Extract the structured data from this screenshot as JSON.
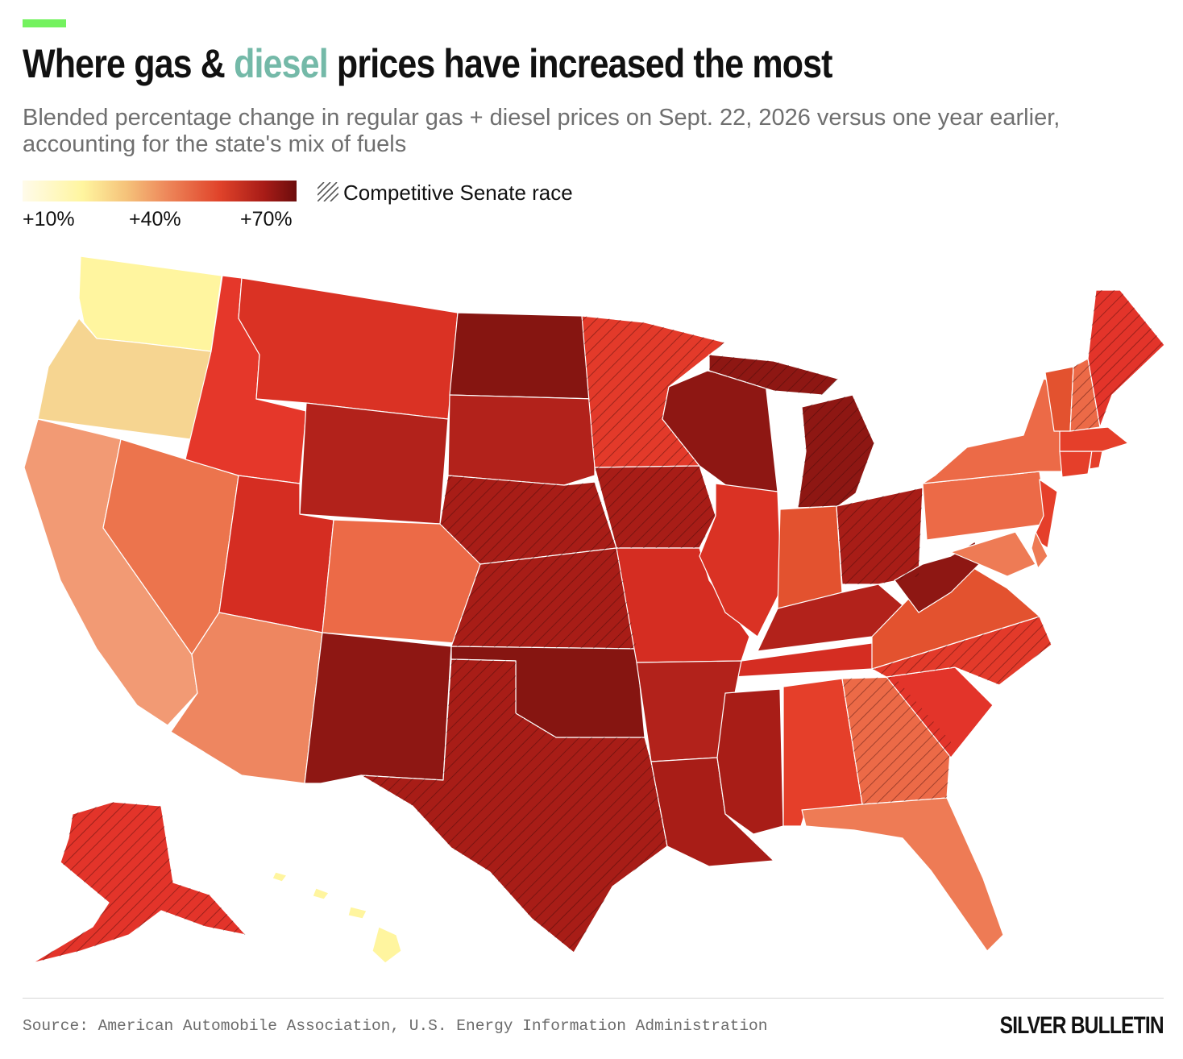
{
  "header": {
    "title_before": "Where gas & ",
    "title_highlight": "diesel",
    "title_after": " prices have increased the most",
    "subtitle": "Blended percentage change in regular gas + diesel prices on Sept. 22, 2026 versus one year earlier, accounting for the state's mix of fuels"
  },
  "legend": {
    "ticks": [
      "+10%",
      "+40%",
      "+70%"
    ],
    "hatch_label": "Competitive Senate race"
  },
  "colors": {
    "accent": "#74f25f",
    "diesel_highlight": "#74b9a8",
    "low": "#fff59f",
    "mid": "#ee8a5c",
    "high": "#e0432a",
    "top": "#6c0d0d",
    "hatch": "#3a0808"
  },
  "footer": {
    "source": "Source: American Automobile Association, U.S. Energy Information Administration",
    "brand": "SILVER BULLETIN"
  }
}
